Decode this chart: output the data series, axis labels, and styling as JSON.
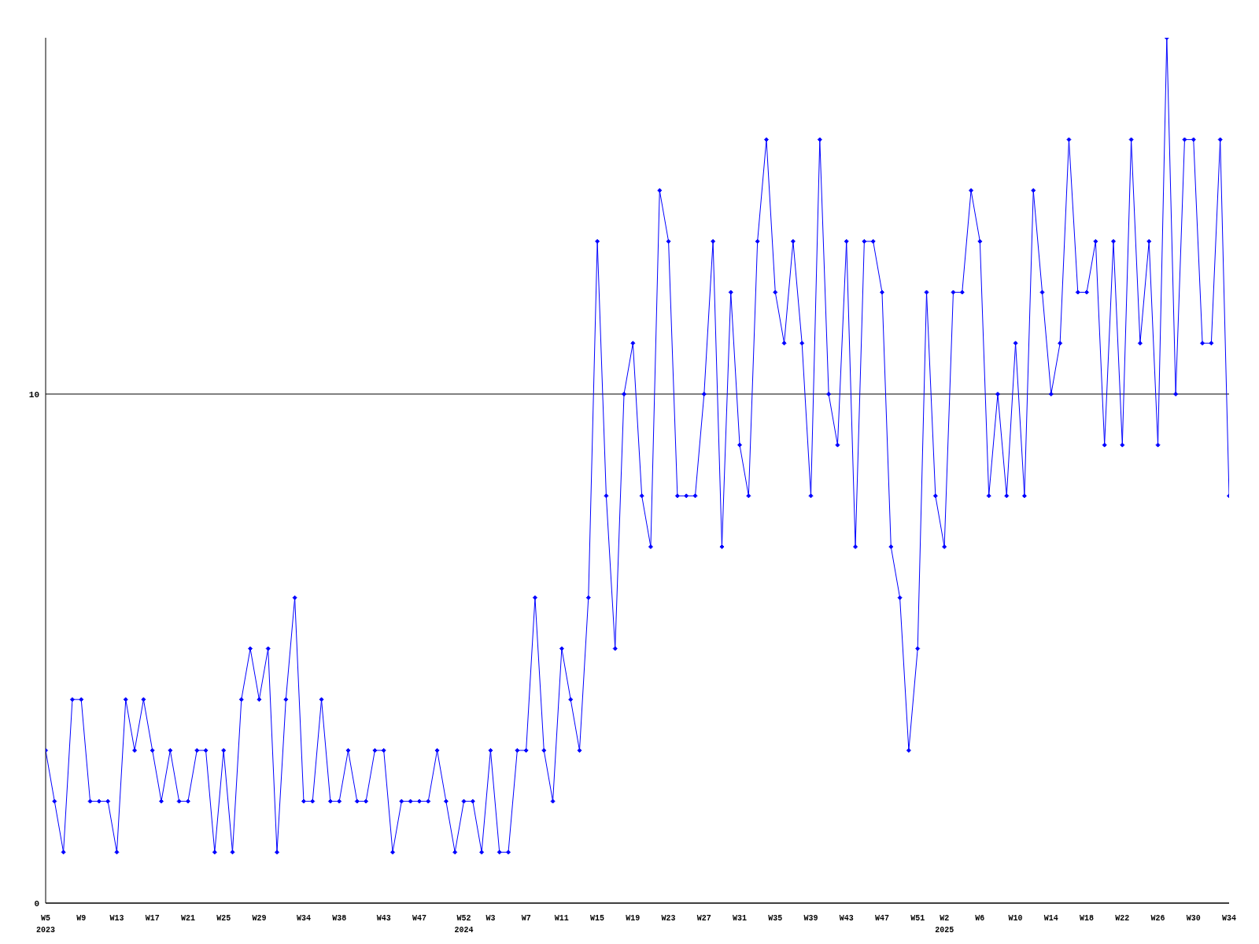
{
  "chart_data": {
    "type": "line",
    "categories": [
      "W5\n2023",
      null,
      null,
      null,
      "W9",
      null,
      null,
      null,
      "W13",
      null,
      null,
      null,
      "W17",
      null,
      null,
      null,
      "W21",
      null,
      null,
      null,
      "W25",
      null,
      null,
      null,
      "W29",
      null,
      null,
      null,
      null,
      "W34",
      null,
      null,
      null,
      "W38",
      null,
      null,
      null,
      null,
      "W43",
      null,
      null,
      null,
      "W47",
      null,
      null,
      null,
      null,
      "W52\n2024",
      null,
      null,
      "W3",
      null,
      null,
      null,
      "W7",
      null,
      null,
      null,
      "W11",
      null,
      null,
      null,
      "W15",
      null,
      null,
      null,
      "W19",
      null,
      null,
      null,
      "W23",
      null,
      null,
      null,
      "W27",
      null,
      null,
      null,
      "W31",
      null,
      null,
      null,
      "W35",
      null,
      null,
      null,
      "W39",
      null,
      null,
      null,
      "W43",
      null,
      null,
      null,
      "W47",
      null,
      null,
      null,
      "W51",
      null,
      null,
      "W2\n2025",
      null,
      null,
      null,
      "W6",
      null,
      null,
      null,
      "W10",
      null,
      null,
      null,
      "W14",
      null,
      null,
      null,
      "W18",
      null,
      null,
      null,
      "W22",
      null,
      null,
      null,
      "W26",
      null,
      null,
      null,
      "W30",
      null,
      null,
      null,
      "W34"
    ],
    "series": [
      {
        "color": "#0000ff",
        "values": [
          3,
          2,
          1,
          4,
          4,
          2,
          2,
          2,
          1,
          4,
          3,
          4,
          3,
          2,
          3,
          2,
          2,
          3,
          3,
          1,
          3,
          1,
          4,
          5,
          4,
          5,
          1,
          4,
          6,
          2,
          2,
          4,
          2,
          2,
          3,
          2,
          2,
          3,
          3,
          1,
          2,
          2,
          2,
          2,
          3,
          2,
          1,
          2,
          2,
          1,
          3,
          1,
          1,
          3,
          3,
          6,
          3,
          2,
          5,
          4,
          3,
          6,
          13,
          8,
          5,
          10,
          11,
          8,
          7,
          14,
          13,
          8,
          8,
          8,
          10,
          13,
          7,
          12,
          9,
          8,
          13,
          15,
          12,
          11,
          13,
          11,
          8,
          15,
          10,
          9,
          13,
          7,
          13,
          13,
          12,
          7,
          6,
          3,
          5,
          12,
          8,
          7,
          12,
          12,
          14,
          13,
          8,
          10,
          8,
          11,
          8,
          14,
          12,
          10,
          11,
          15,
          12,
          12,
          13,
          9,
          13,
          9,
          15,
          11,
          13,
          9,
          17,
          10,
          15,
          15,
          11,
          11,
          15,
          8
        ]
      }
    ],
    "ylim": [
      0,
      17
    ],
    "yticks": [
      0,
      10
    ],
    "grid": "y",
    "marker": "diamond",
    "line_style": "solid"
  }
}
